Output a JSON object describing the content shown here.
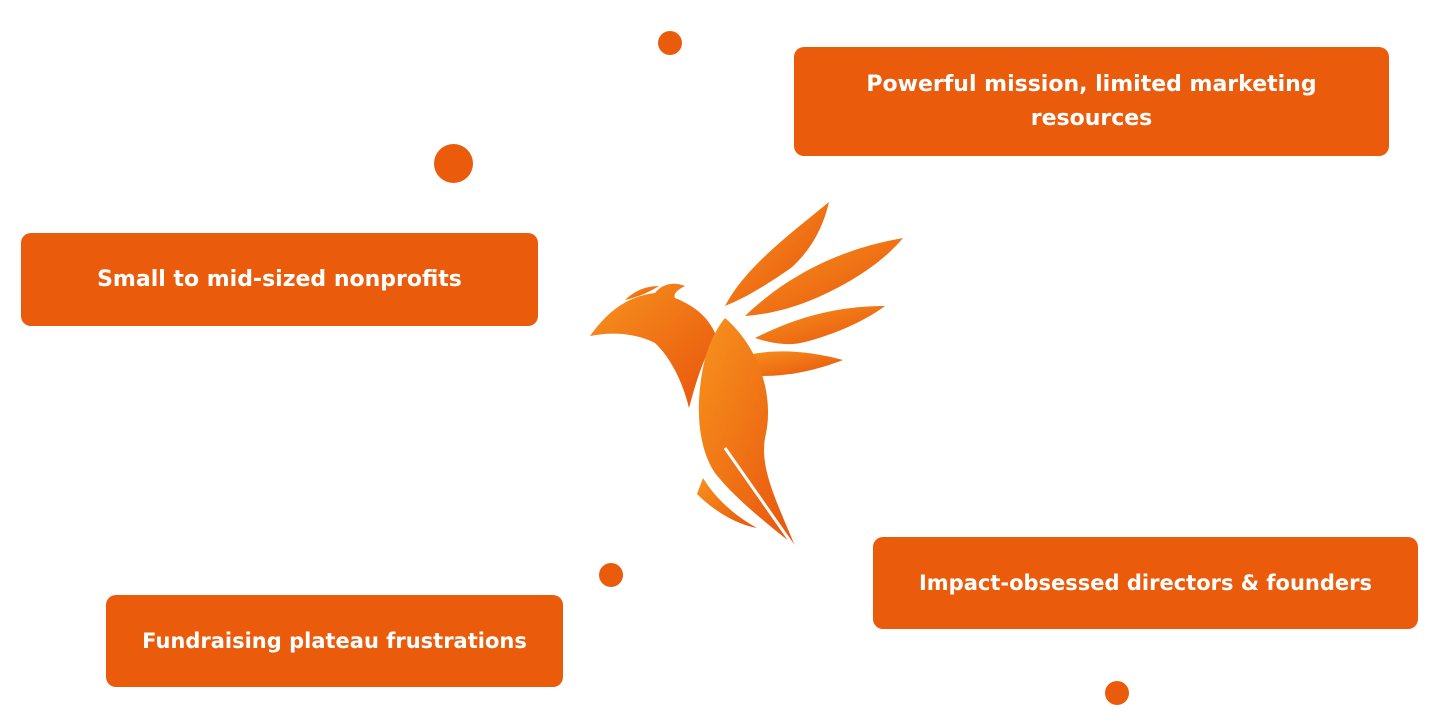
{
  "cards": {
    "mission": "Powerful mission, limited marketing resources",
    "nonprofits": "Small to mid-sized nonprofits",
    "directors": "Impact-obsessed directors & founders",
    "fundraising": "Fundraising plateau frustrations"
  },
  "colors": {
    "accent": "#ea5b0c",
    "logo_light": "#f7931e",
    "logo_dark": "#e8540c",
    "text": "#ffffff"
  },
  "logo": {
    "icon": "phoenix-feather-icon"
  }
}
